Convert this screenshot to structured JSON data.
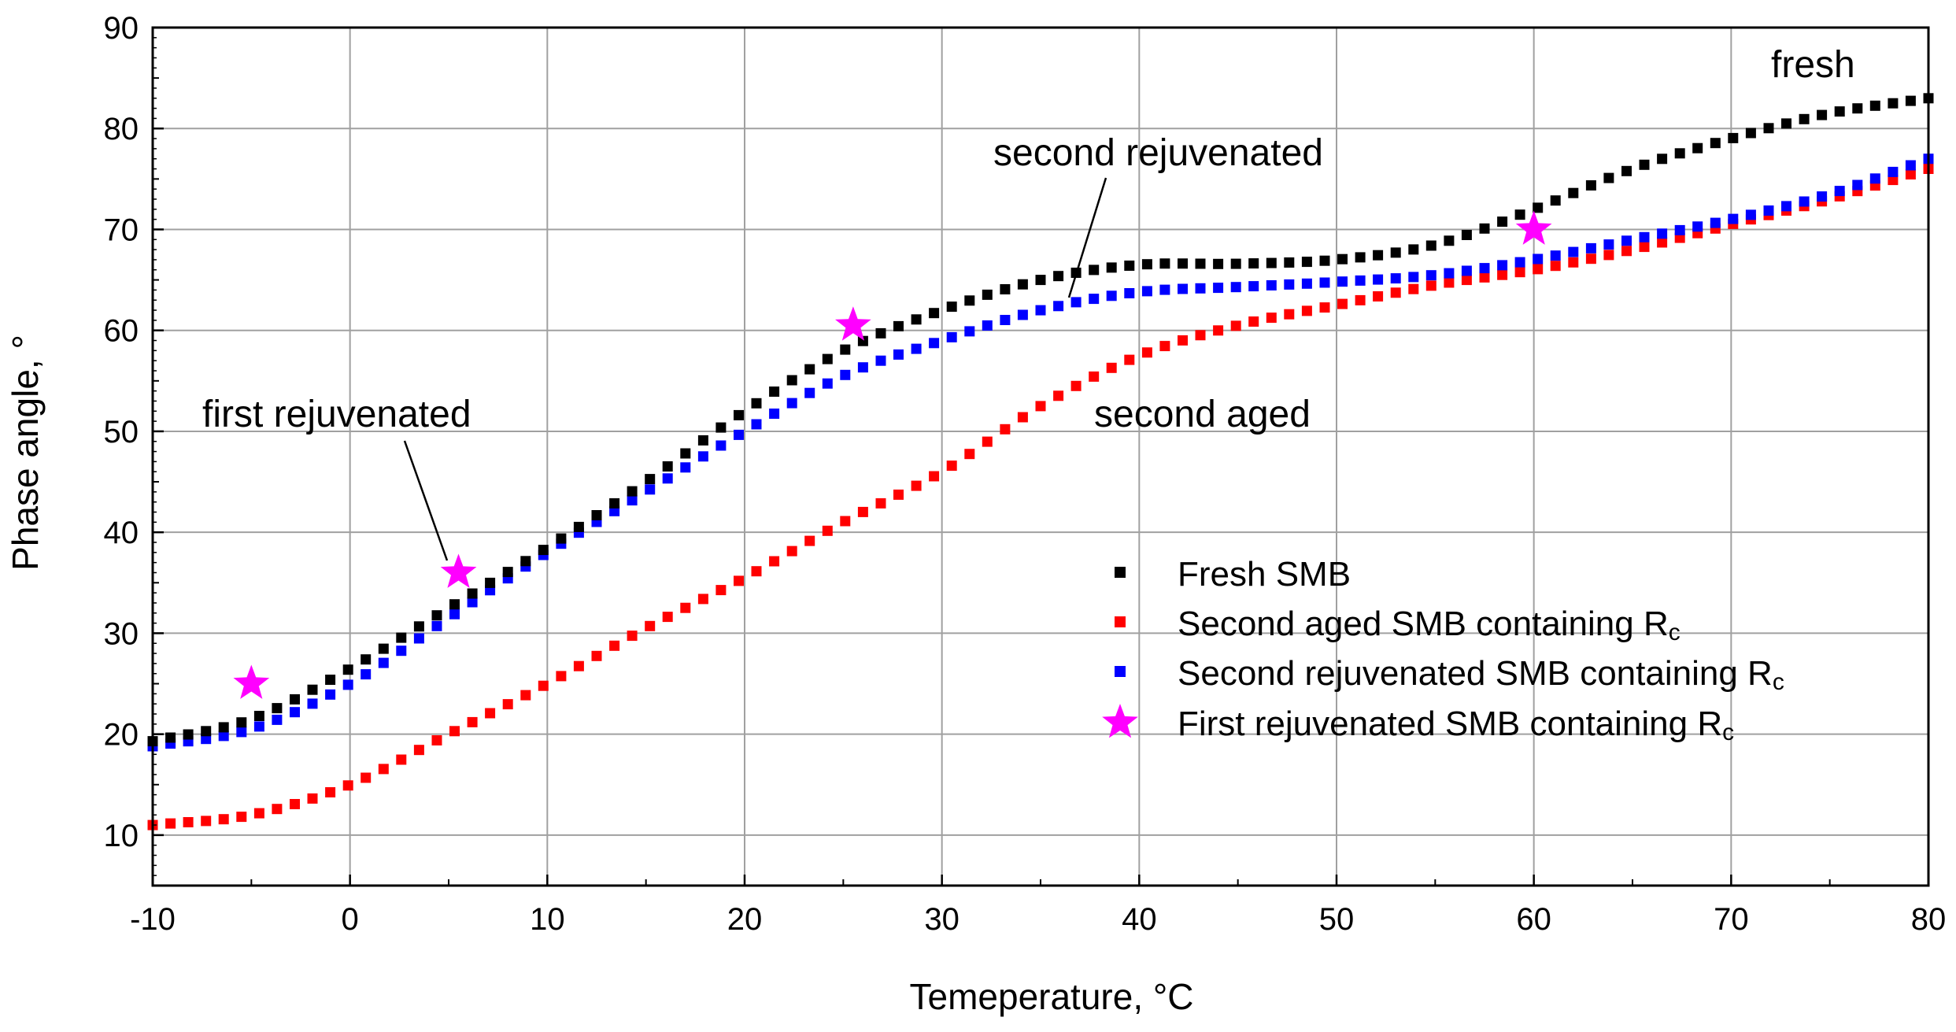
{
  "chart_data": {
    "type": "scatter",
    "xlabel": "Temeperature, °C",
    "ylabel": "Phase angle, °",
    "xlim": [
      -10,
      80
    ],
    "ylim": [
      5,
      90
    ],
    "x_ticks": [
      "-10",
      "0",
      "10",
      "20",
      "30",
      "40",
      "50",
      "60",
      "70",
      "80"
    ],
    "y_ticks": [
      "10",
      "20",
      "30",
      "40",
      "50",
      "60",
      "70",
      "80",
      "90"
    ],
    "grid": true,
    "legend_position": "center-right",
    "series": [
      {
        "name": "Fresh SMB",
        "marker": "square",
        "color": "#000000",
        "points": [
          [
            -10,
            19.3
          ],
          [
            -5,
            21.5
          ],
          [
            0,
            26.5
          ],
          [
            5,
            32.5
          ],
          [
            10,
            38.5
          ],
          [
            15,
            45
          ],
          [
            20,
            52
          ],
          [
            25,
            58
          ],
          [
            30,
            62
          ],
          [
            35,
            65
          ],
          [
            40,
            66.5
          ],
          [
            45,
            66.6
          ],
          [
            50,
            67
          ],
          [
            55,
            68.5
          ],
          [
            60,
            72
          ],
          [
            65,
            76
          ],
          [
            70,
            79
          ],
          [
            75,
            81.5
          ],
          [
            80,
            83
          ]
        ]
      },
      {
        "name": "Second aged SMB containing R",
        "name_sub": "c",
        "marker": "square",
        "color": "#ff0000",
        "points": [
          [
            -10,
            11
          ],
          [
            -5,
            12
          ],
          [
            0,
            15
          ],
          [
            5,
            20
          ],
          [
            10,
            25
          ],
          [
            15,
            30.5
          ],
          [
            20,
            35.5
          ],
          [
            25,
            41
          ],
          [
            30,
            46
          ],
          [
            35,
            52.5
          ],
          [
            40,
            57.5
          ],
          [
            45,
            60.5
          ],
          [
            50,
            62.5
          ],
          [
            55,
            64.5
          ],
          [
            60,
            66
          ],
          [
            65,
            68
          ],
          [
            70,
            70.5
          ],
          [
            75,
            73
          ],
          [
            80,
            76
          ]
        ]
      },
      {
        "name": "Second rejuvenated SMB containing R",
        "name_sub": "c",
        "marker": "square",
        "color": "#0000ff",
        "points": [
          [
            -10,
            18.8
          ],
          [
            -5,
            20.5
          ],
          [
            0,
            25
          ],
          [
            5,
            31.5
          ],
          [
            10,
            38
          ],
          [
            15,
            44
          ],
          [
            20,
            50
          ],
          [
            25,
            55.5
          ],
          [
            30,
            59
          ],
          [
            35,
            62
          ],
          [
            40,
            63.8
          ],
          [
            45,
            64.3
          ],
          [
            50,
            64.8
          ],
          [
            55,
            65.5
          ],
          [
            60,
            67
          ],
          [
            65,
            69
          ],
          [
            70,
            71
          ],
          [
            75,
            73.5
          ],
          [
            80,
            77
          ]
        ]
      },
      {
        "name": "First rejuvenated SMB containing R",
        "name_sub": "c",
        "marker": "star",
        "color": "#ff00ff",
        "points": [
          [
            -5,
            25
          ],
          [
            5.5,
            36
          ],
          [
            25.5,
            60.5
          ],
          [
            60,
            70
          ]
        ]
      }
    ],
    "annotations": [
      {
        "text": "fresh"
      },
      {
        "text": "second rejuvenated"
      },
      {
        "text": "second aged"
      },
      {
        "text": "first rejuvenated"
      }
    ]
  }
}
